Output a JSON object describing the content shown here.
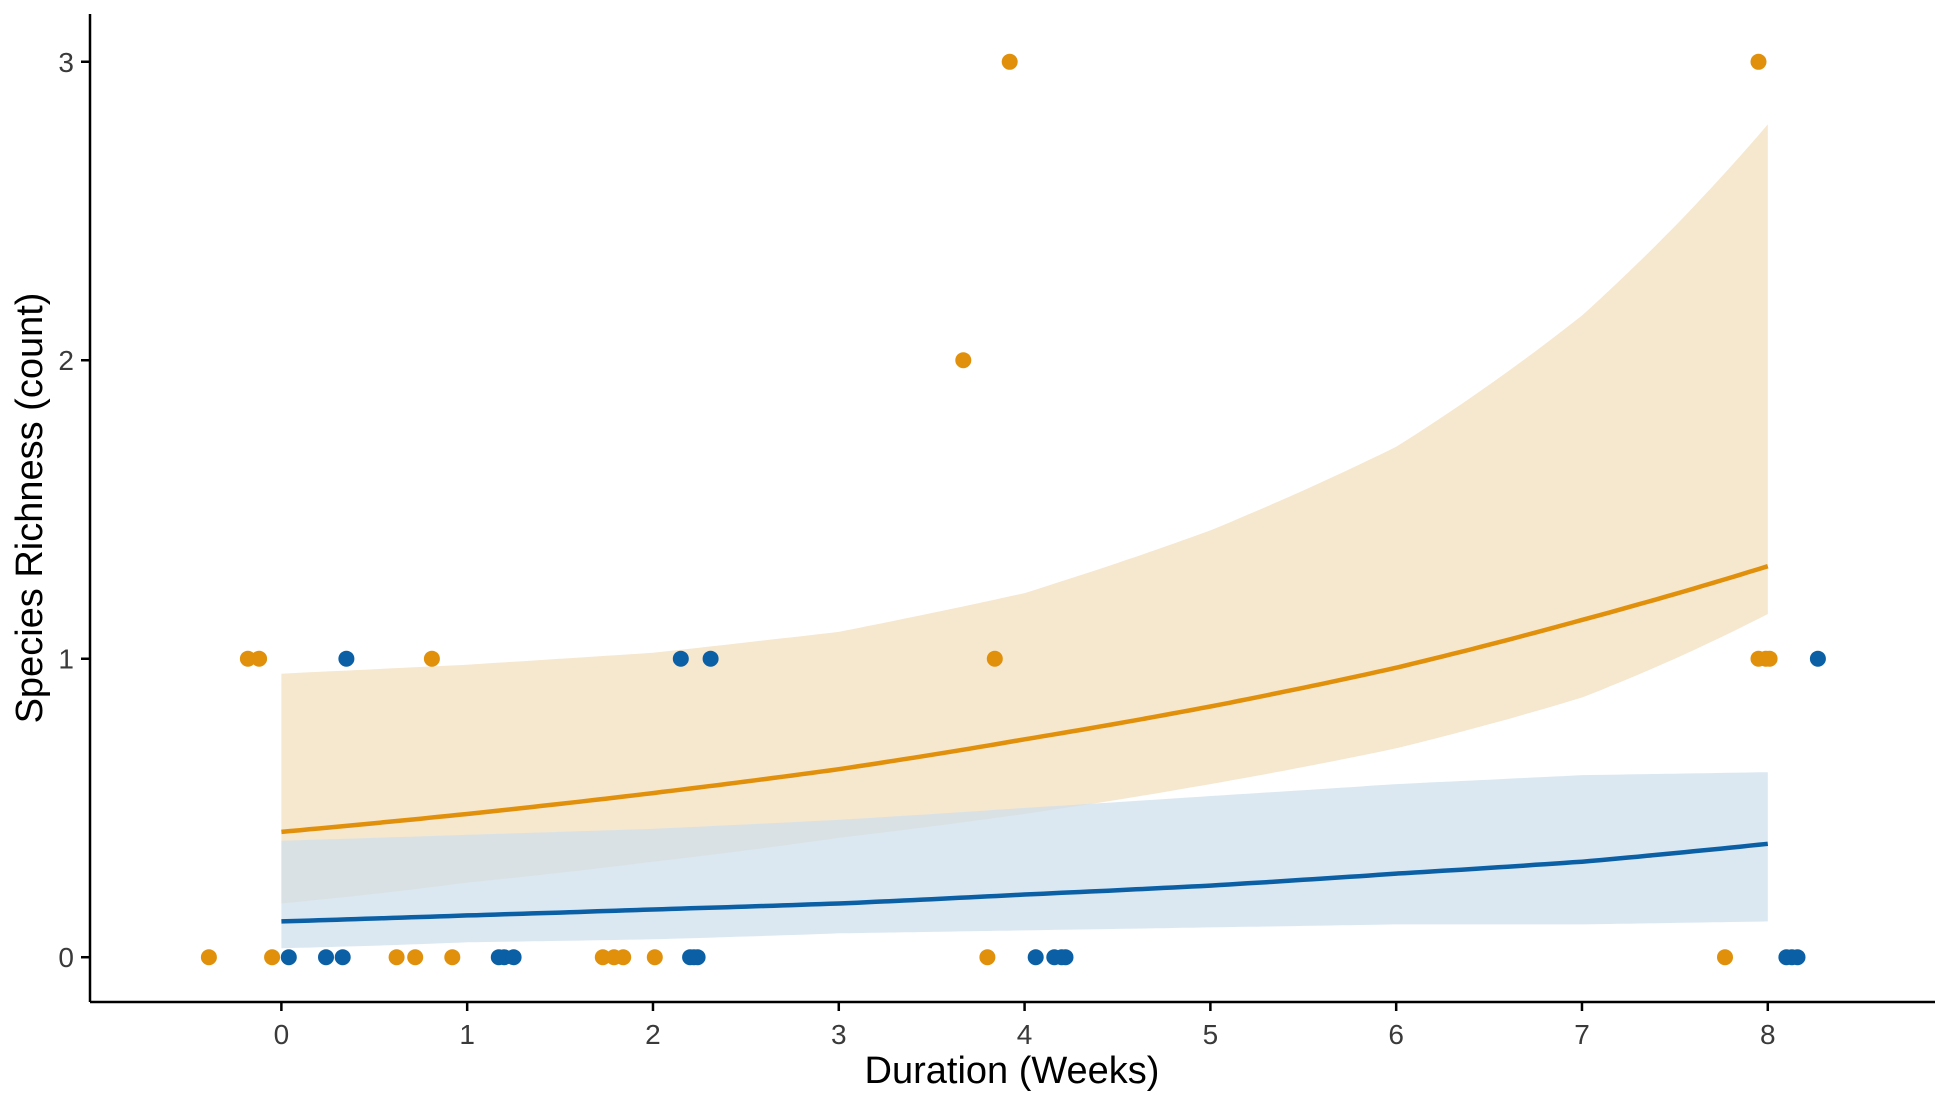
{
  "chart_data": {
    "type": "scatter",
    "title": "",
    "xlabel": "Duration (Weeks)",
    "ylabel": "Species Richness (count)",
    "xlim": [
      -1.03,
      8.9
    ],
    "ylim": [
      -0.15,
      3.16
    ],
    "x_ticks": [
      0,
      1,
      2,
      3,
      4,
      5,
      6,
      7,
      8
    ],
    "y_ticks": [
      0,
      1,
      2,
      3
    ],
    "x_tick_labels": [
      "0",
      "1",
      "2",
      "3",
      "4",
      "5",
      "6",
      "7",
      "8"
    ],
    "y_tick_labels": [
      "0",
      "1",
      "2",
      "3"
    ],
    "grid": false,
    "legend": "none",
    "series": [
      {
        "color": "#E0900B",
        "band_color": "#F6E7CF",
        "points": [
          [
            -0.39,
            0
          ],
          [
            -0.05,
            0
          ],
          [
            0.62,
            0
          ],
          [
            0.72,
            0
          ],
          [
            0.92,
            0
          ],
          [
            1.73,
            0
          ],
          [
            1.79,
            0
          ],
          [
            1.84,
            0
          ],
          [
            2.01,
            0
          ],
          [
            3.8,
            0
          ],
          [
            7.77,
            0
          ],
          [
            -0.18,
            1
          ],
          [
            -0.12,
            1
          ],
          [
            0.81,
            1
          ],
          [
            3.84,
            1
          ],
          [
            7.95,
            1
          ],
          [
            7.99,
            1
          ],
          [
            8.01,
            1
          ],
          [
            3.67,
            2
          ],
          [
            3.92,
            3
          ],
          [
            7.95,
            3
          ]
        ],
        "fit": {
          "x": [
            0,
            1,
            2,
            3,
            4,
            5,
            6,
            7,
            8
          ],
          "y": [
            0.42,
            0.48,
            0.55,
            0.63,
            0.73,
            0.84,
            0.97,
            1.13,
            1.31
          ],
          "lower": [
            0.18,
            0.25,
            0.32,
            0.4,
            0.48,
            0.58,
            0.7,
            0.87,
            1.15
          ],
          "upper": [
            0.95,
            0.98,
            1.02,
            1.09,
            1.22,
            1.43,
            1.71,
            2.15,
            2.79
          ]
        }
      },
      {
        "color": "#0B5FA5",
        "band_color": "#CDDFEC",
        "points": [
          [
            0.04,
            0
          ],
          [
            0.24,
            0
          ],
          [
            0.33,
            0
          ],
          [
            1.17,
            0
          ],
          [
            1.2,
            0
          ],
          [
            1.25,
            0
          ],
          [
            2.2,
            0
          ],
          [
            2.22,
            0
          ],
          [
            2.24,
            0
          ],
          [
            4.06,
            0
          ],
          [
            4.16,
            0
          ],
          [
            4.2,
            0
          ],
          [
            4.22,
            0
          ],
          [
            8.1,
            0
          ],
          [
            8.13,
            0
          ],
          [
            8.16,
            0
          ],
          [
            0.35,
            1
          ],
          [
            2.15,
            1
          ],
          [
            2.31,
            1
          ],
          [
            8.27,
            1
          ]
        ],
        "fit": {
          "x": [
            0,
            1,
            2,
            3,
            4,
            5,
            6,
            7,
            8
          ],
          "y": [
            0.12,
            0.14,
            0.16,
            0.18,
            0.21,
            0.24,
            0.28,
            0.32,
            0.38
          ],
          "lower": [
            0.03,
            0.05,
            0.06,
            0.08,
            0.09,
            0.1,
            0.11,
            0.11,
            0.12
          ],
          "upper": [
            0.39,
            0.41,
            0.43,
            0.46,
            0.5,
            0.54,
            0.58,
            0.61,
            0.62
          ]
        }
      }
    ]
  }
}
